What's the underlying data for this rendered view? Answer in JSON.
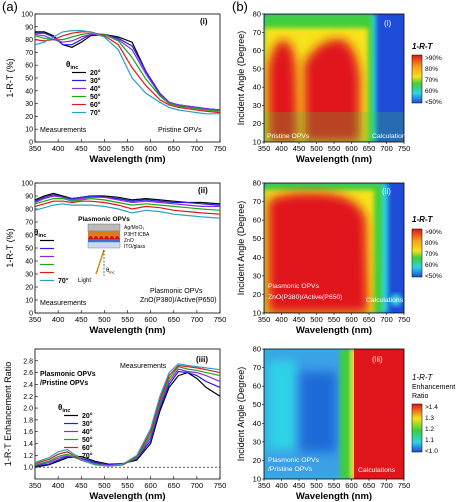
{
  "panel_letters": [
    "(a)",
    "(b)"
  ],
  "colors": {
    "20": "#000000",
    "30": "#1f1fe6",
    "40": "#8a2be2",
    "50": "#18a818",
    "60": "#e01818",
    "70": "#2aa0c8",
    "heat_red": "#e0151a",
    "heat_yellow": "#f7e21a",
    "heat_green": "#3fcf3a",
    "heat_cyan": "#2fd3e6",
    "heat_blue": "#1e4bd8"
  },
  "labels": {
    "theta": "θ",
    "theta_sub": "inc",
    "colorbar_title": "1-R-T",
    "colorbar_title_ratio": [
      "1-R-T",
      "Enhancement",
      "Ratio"
    ]
  },
  "chart_data": [
    {
      "id": "a-i",
      "type": "line",
      "panel_tag": "(i)",
      "xlabel": "Wavelength (nm)",
      "ylabel": "1-R-T (%)",
      "xlim": [
        350,
        750
      ],
      "ylim": [
        0,
        100
      ],
      "xticks": [
        350,
        400,
        450,
        500,
        550,
        600,
        650,
        700,
        750
      ],
      "yticks": [
        0,
        10,
        20,
        30,
        40,
        50,
        60,
        70,
        80,
        90,
        100
      ],
      "annotations": [
        "Measurements",
        "Pristine OPVs"
      ],
      "x": [
        350,
        370,
        390,
        410,
        430,
        450,
        470,
        500,
        530,
        560,
        590,
        620,
        640,
        660,
        680,
        700,
        720,
        750
      ],
      "series": [
        {
          "name": "20°",
          "values": [
            86,
            86,
            83,
            76,
            74,
            78,
            83,
            84,
            82,
            78,
            55,
            38,
            31,
            29,
            28,
            27,
            26,
            25
          ]
        },
        {
          "name": "30°",
          "values": [
            85,
            85,
            82,
            76,
            76,
            80,
            84,
            84,
            81,
            75,
            55,
            38,
            31,
            29,
            28,
            27,
            26,
            25
          ]
        },
        {
          "name": "40°",
          "values": [
            84,
            83,
            80,
            78,
            79,
            82,
            84,
            84,
            80,
            72,
            53,
            37,
            31,
            29,
            28,
            27,
            26,
            25
          ]
        },
        {
          "name": "50°",
          "values": [
            83,
            81,
            80,
            80,
            82,
            84,
            85,
            84,
            79,
            66,
            49,
            36,
            30,
            28,
            27,
            26,
            25,
            24
          ]
        },
        {
          "name": "60°",
          "values": [
            80,
            79,
            80,
            83,
            85,
            86,
            86,
            83,
            76,
            58,
            44,
            33,
            29,
            27,
            26,
            25,
            24,
            23
          ]
        },
        {
          "name": "70°",
          "values": [
            76,
            78,
            82,
            86,
            87,
            87,
            86,
            82,
            72,
            50,
            38,
            31,
            27,
            25,
            24,
            23,
            22,
            22
          ]
        }
      ]
    },
    {
      "id": "a-ii",
      "type": "line",
      "panel_tag": "(ii)",
      "xlabel": "Wavelength (nm)",
      "ylabel": "1-R-T (%)",
      "xlim": [
        350,
        750
      ],
      "ylim": [
        0,
        100
      ],
      "xticks": [
        350,
        400,
        450,
        500,
        550,
        600,
        650,
        700,
        750
      ],
      "yticks": [
        0,
        10,
        20,
        30,
        40,
        50,
        60,
        70,
        80,
        90,
        100
      ],
      "annotations": [
        "Measurements",
        "Plasmonic OPVs",
        "ZnO(P380)/Active(P650)"
      ],
      "inset": {
        "title": "Plasmonic OPVs",
        "layers": [
          "Ag/MoO₃",
          "P3HT:ICBA",
          "ZnO",
          "ITO/glass"
        ],
        "light": "Light",
        "theta": "θ",
        "theta_sub": "inc"
      },
      "x": [
        350,
        370,
        390,
        410,
        430,
        450,
        470,
        500,
        530,
        560,
        590,
        620,
        650,
        680,
        710,
        750
      ],
      "series": [
        {
          "name": "20°",
          "values": [
            87,
            90,
            92,
            90,
            88,
            89,
            90,
            90,
            89,
            87,
            88,
            87,
            86,
            85,
            85,
            84
          ]
        },
        {
          "name": "30°",
          "values": [
            86,
            89,
            91,
            89,
            88,
            89,
            90,
            89,
            88,
            86,
            87,
            86,
            85,
            85,
            84,
            83
          ]
        },
        {
          "name": "40°",
          "values": [
            85,
            88,
            90,
            89,
            87,
            88,
            89,
            89,
            87,
            85,
            86,
            85,
            84,
            83,
            82,
            82
          ]
        },
        {
          "name": "50°",
          "values": [
            84,
            86,
            88,
            88,
            86,
            87,
            88,
            87,
            85,
            83,
            84,
            83,
            82,
            81,
            80,
            79
          ]
        },
        {
          "name": "60°",
          "values": [
            82,
            84,
            86,
            86,
            85,
            86,
            86,
            85,
            83,
            80,
            82,
            81,
            79,
            78,
            77,
            76
          ]
        },
        {
          "name": "70°",
          "values": [
            79,
            81,
            83,
            84,
            83,
            83,
            83,
            82,
            80,
            77,
            79,
            78,
            76,
            75,
            74,
            73
          ]
        }
      ]
    },
    {
      "id": "a-iii",
      "type": "line",
      "panel_tag": "(iii)",
      "xlabel": "Wavelength (nm)",
      "ylabel": "1-R-T Enhancement Ratio",
      "xlim": [
        350,
        750
      ],
      "ylim": [
        0.8,
        3.0
      ],
      "xticks": [
        350,
        400,
        450,
        500,
        550,
        600,
        650,
        700,
        750
      ],
      "yticks": [
        1.0,
        1.2,
        1.4,
        1.6,
        1.8,
        2.0,
        2.2,
        2.4,
        2.6,
        2.8
      ],
      "reference_line": 1.0,
      "annotations": [
        "Plasmonic OPVs",
        "/Pristine OPVs",
        "Measurements"
      ],
      "x": [
        350,
        380,
        400,
        420,
        450,
        480,
        510,
        540,
        570,
        600,
        620,
        640,
        660,
        680,
        700,
        720,
        750
      ],
      "series": [
        {
          "name": "20°",
          "values": [
            1.0,
            1.04,
            1.1,
            1.16,
            1.18,
            1.1,
            1.05,
            1.06,
            1.12,
            1.4,
            1.95,
            2.35,
            2.55,
            2.6,
            2.5,
            2.35,
            2.2
          ]
        },
        {
          "name": "30°",
          "values": [
            1.02,
            1.05,
            1.12,
            1.18,
            1.15,
            1.08,
            1.04,
            1.06,
            1.14,
            1.45,
            2.0,
            2.4,
            2.62,
            2.6,
            2.55,
            2.45,
            2.35
          ]
        },
        {
          "name": "40°",
          "values": [
            1.03,
            1.08,
            1.15,
            1.2,
            1.13,
            1.06,
            1.03,
            1.05,
            1.15,
            1.5,
            2.05,
            2.45,
            2.66,
            2.62,
            2.6,
            2.55,
            2.45
          ]
        },
        {
          "name": "50°",
          "values": [
            1.04,
            1.1,
            1.18,
            1.22,
            1.12,
            1.05,
            1.02,
            1.04,
            1.16,
            1.55,
            2.1,
            2.5,
            2.7,
            2.66,
            2.64,
            2.6,
            2.55
          ]
        },
        {
          "name": "60°",
          "values": [
            1.06,
            1.13,
            1.22,
            1.26,
            1.12,
            1.04,
            1.02,
            1.04,
            1.18,
            1.6,
            2.15,
            2.55,
            2.72,
            2.7,
            2.68,
            2.65,
            2.6
          ]
        },
        {
          "name": "70°",
          "values": [
            1.08,
            1.16,
            1.26,
            1.3,
            1.13,
            1.04,
            1.02,
            1.05,
            1.2,
            1.65,
            2.2,
            2.6,
            2.75,
            2.72,
            2.7,
            2.68,
            2.65
          ]
        }
      ]
    },
    {
      "id": "b-i",
      "type": "heatmap",
      "panel_tag": "(i)",
      "xlabel": "Wavelength (nm)",
      "ylabel": "Incident Angle (Degree)",
      "xlim": [
        350,
        750
      ],
      "ylim": [
        10,
        80
      ],
      "xticks": [
        350,
        400,
        450,
        500,
        550,
        600,
        650,
        700,
        750
      ],
      "yticks": [
        10,
        20,
        30,
        40,
        50,
        60,
        70,
        80
      ],
      "annotations": [
        "Pristine OPVs",
        "Calculations"
      ],
      "colorbar": {
        "title": "1-R-T",
        "labels": [
          ">90%",
          "80%",
          "70%",
          "60%",
          "<50%"
        ]
      }
    },
    {
      "id": "b-ii",
      "type": "heatmap",
      "panel_tag": "(ii)",
      "xlabel": "Wavelength (nm)",
      "ylabel": "Incident Angle (Degree)",
      "xlim": [
        350,
        750
      ],
      "ylim": [
        10,
        80
      ],
      "xticks": [
        350,
        400,
        450,
        500,
        550,
        600,
        650,
        700,
        750
      ],
      "yticks": [
        10,
        20,
        30,
        40,
        50,
        60,
        70,
        80
      ],
      "annotations": [
        "Plasmonic OPVs",
        "ZnO(P380)/Active(P650)",
        "Calculations"
      ],
      "colorbar": {
        "title": "1-R-T",
        "labels": [
          ">90%",
          "80%",
          "70%",
          "60%",
          "<50%"
        ]
      }
    },
    {
      "id": "b-iii",
      "type": "heatmap",
      "panel_tag": "(iii)",
      "xlabel": "Wavelength (nm)",
      "ylabel": "Incident Angle (Degree)",
      "xlim": [
        350,
        750
      ],
      "ylim": [
        10,
        80
      ],
      "xticks": [
        350,
        400,
        450,
        500,
        550,
        600,
        650,
        700,
        750
      ],
      "yticks": [
        10,
        20,
        30,
        40,
        50,
        60,
        70,
        80
      ],
      "annotations": [
        "Plasmonic OPVs",
        "/Pristine OPVs",
        "Calculations"
      ],
      "colorbar": {
        "title": "1-R-T Enhancement Ratio",
        "labels": [
          ">1.4",
          "1.3",
          "1.2",
          "1.1",
          "<1.0"
        ]
      }
    }
  ]
}
